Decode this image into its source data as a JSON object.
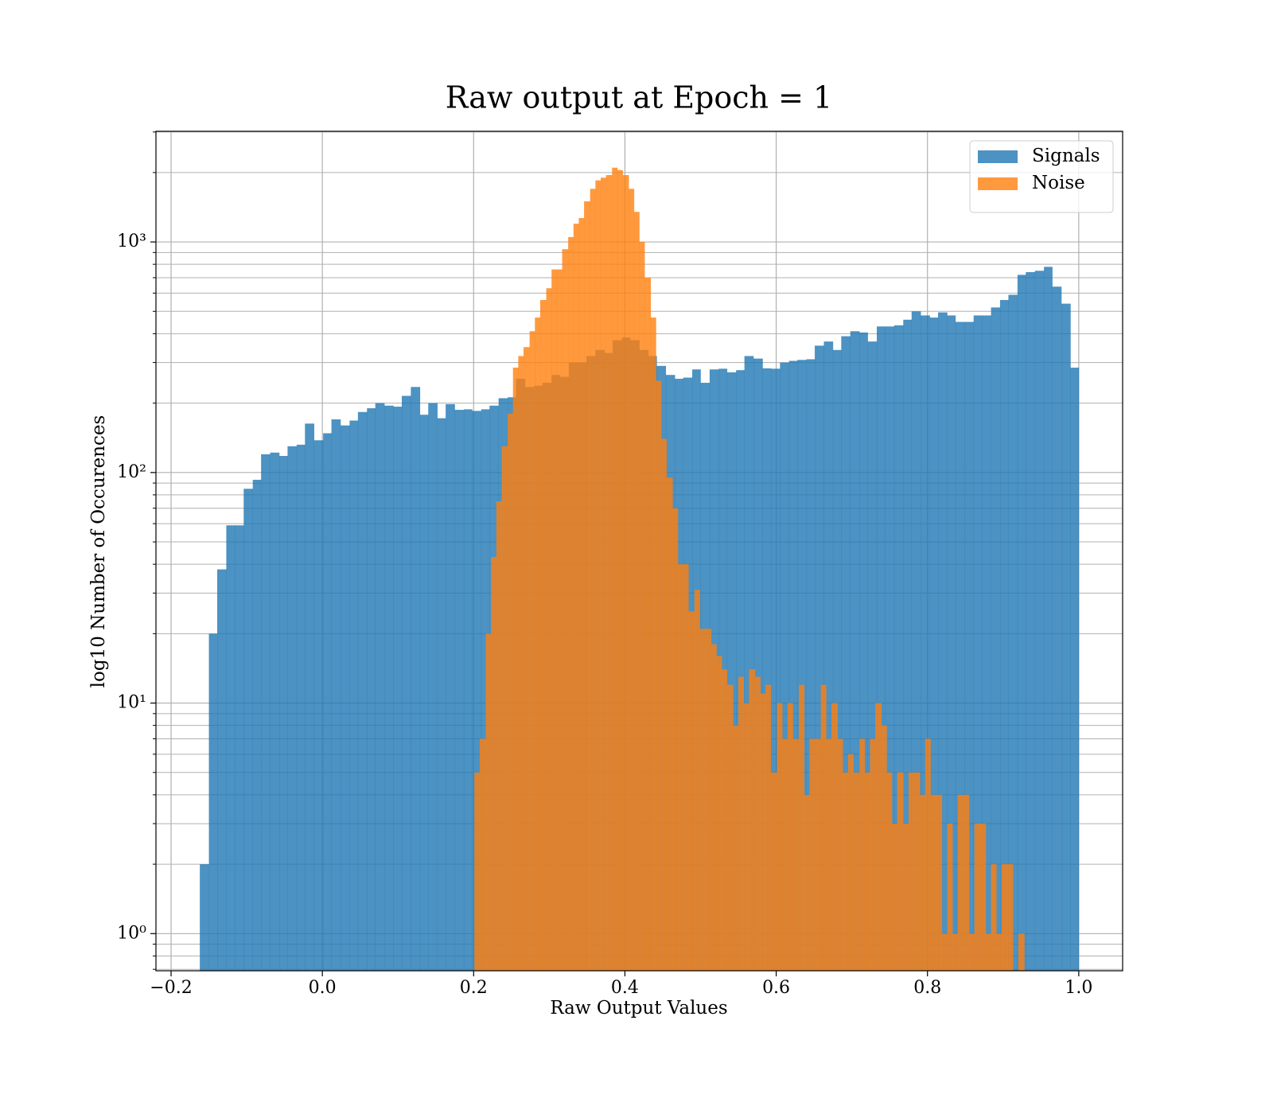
{
  "chart_data": {
    "type": "histogram",
    "title": "Raw output at Epoch = 1",
    "xlabel": "Raw Output Values",
    "ylabel": "log10 Number of Occurences",
    "log_y": true,
    "grid": true,
    "legend": "upper right",
    "alpha": 0.8,
    "xlim": [
      -0.22,
      1.058
    ],
    "ylim": [
      0.69,
      3020
    ],
    "xticks": [
      {
        "value": -0.2,
        "label": "−0.2"
      },
      {
        "value": 0,
        "label": "0.0"
      },
      0.2,
      0.4,
      0.6,
      0.8,
      {
        "value": 1,
        "label": "1.0"
      }
    ],
    "yticks": [
      {
        "value": 1,
        "label": "10⁰"
      },
      {
        "value": 10,
        "label": "10¹"
      },
      {
        "value": 100,
        "label": "10²"
      },
      {
        "value": 1000,
        "label": "10³"
      }
    ],
    "yticks_minor": [
      0.7,
      0.8,
      0.9,
      2,
      3,
      4,
      5,
      6,
      7,
      8,
      9,
      20,
      30,
      40,
      50,
      60,
      70,
      80,
      90,
      200,
      300,
      400,
      500,
      600,
      700,
      800,
      900,
      2000,
      3000
    ],
    "series": [
      {
        "name": "Signals",
        "color": "#1f77b4",
        "bins": [
          -0.162,
          -0.15,
          -0.139,
          -0.127,
          -0.116,
          -0.104,
          -0.092,
          -0.081,
          -0.069,
          -0.057,
          -0.046,
          -0.034,
          -0.023,
          -0.011,
          0.001,
          0.012,
          0.024,
          0.036,
          0.047,
          0.059,
          0.07,
          0.082,
          0.094,
          0.105,
          0.117,
          0.129,
          0.14,
          0.152,
          0.163,
          0.175,
          0.187,
          0.198,
          0.21,
          0.221,
          0.233,
          0.245,
          0.256,
          0.268,
          0.28,
          0.291,
          0.303,
          0.314,
          0.326,
          0.338,
          0.349,
          0.361,
          0.373,
          0.384,
          0.396,
          0.407,
          0.419,
          0.431,
          0.442,
          0.454,
          0.466,
          0.477,
          0.489,
          0.5,
          0.512,
          0.524,
          0.535,
          0.547,
          0.558,
          0.57,
          0.582,
          0.593,
          0.605,
          0.617,
          0.628,
          0.64,
          0.651,
          0.663,
          0.675,
          0.686,
          0.698,
          0.71,
          0.721,
          0.733,
          0.744,
          0.756,
          0.768,
          0.779,
          0.791,
          0.803,
          0.814,
          0.826,
          0.837,
          0.849,
          0.861,
          0.872,
          0.884,
          0.896,
          0.907,
          0.919,
          0.93,
          0.942,
          0.954,
          0.965,
          0.977,
          0.989,
          1.0
        ],
        "values": [
          2,
          20,
          38,
          59,
          59,
          85,
          93,
          120,
          122,
          118,
          130,
          132,
          163,
          138,
          148,
          170,
          160,
          168,
          183,
          190,
          200,
          195,
          193,
          215,
          235,
          178,
          200,
          172,
          198,
          187,
          188,
          185,
          188,
          195,
          210,
          212,
          255,
          235,
          238,
          245,
          265,
          260,
          300,
          300,
          320,
          340,
          330,
          375,
          385,
          375,
          340,
          320,
          290,
          265,
          255,
          258,
          280,
          245,
          280,
          282,
          272,
          278,
          320,
          312,
          283,
          282,
          300,
          305,
          308,
          310,
          355,
          370,
          340,
          390,
          410,
          405,
          370,
          430,
          430,
          435,
          460,
          500,
          480,
          470,
          495,
          480,
          450,
          450,
          480,
          480,
          520,
          560,
          590,
          720,
          740,
          750,
          780,
          640,
          540,
          285
        ]
      },
      {
        "name": "Noise",
        "color": "#ff7f0e",
        "bins": [
          0.201,
          0.208,
          0.216,
          0.223,
          0.23,
          0.237,
          0.245,
          0.252,
          0.259,
          0.266,
          0.274,
          0.281,
          0.288,
          0.296,
          0.303,
          0.31,
          0.317,
          0.325,
          0.332,
          0.339,
          0.346,
          0.354,
          0.361,
          0.368,
          0.375,
          0.383,
          0.39,
          0.397,
          0.405,
          0.412,
          0.419,
          0.426,
          0.434,
          0.441,
          0.448,
          0.455,
          0.463,
          0.47,
          0.477,
          0.484,
          0.492,
          0.499,
          0.506,
          0.514,
          0.521,
          0.528,
          0.535,
          0.543,
          0.55,
          0.557,
          0.564,
          0.572,
          0.579,
          0.586,
          0.593,
          0.601,
          0.608,
          0.615,
          0.622,
          0.63,
          0.637,
          0.644,
          0.652,
          0.659,
          0.666,
          0.673,
          0.681,
          0.688,
          0.695,
          0.702,
          0.71,
          0.717,
          0.724,
          0.731,
          0.739,
          0.746,
          0.753,
          0.76,
          0.768,
          0.775,
          0.782,
          0.79,
          0.797,
          0.804,
          0.811,
          0.819,
          0.826,
          0.833,
          0.84,
          0.848,
          0.855,
          0.862,
          0.869,
          0.877,
          0.884,
          0.891,
          0.898,
          0.906,
          0.913,
          0.92,
          0.928
        ],
        "values": [
          5,
          7,
          20,
          43,
          75,
          130,
          180,
          285,
          320,
          350,
          410,
          470,
          560,
          630,
          760,
          760,
          930,
          1050,
          1200,
          1270,
          1500,
          1700,
          1850,
          1900,
          1950,
          2100,
          2050,
          1950,
          1700,
          1350,
          1000,
          700,
          470,
          250,
          140,
          95,
          70,
          40,
          40,
          25,
          31,
          21,
          21,
          18,
          16,
          14,
          12,
          8,
          13,
          10,
          14,
          13,
          11,
          12,
          5,
          10,
          7,
          10,
          7,
          12,
          4,
          7,
          7,
          12,
          7,
          10,
          7,
          5,
          6,
          5,
          7,
          5,
          7,
          10,
          8,
          5,
          3,
          5,
          3,
          5,
          5,
          4,
          7,
          4,
          4,
          1,
          3,
          1,
          4,
          4,
          1,
          3,
          3,
          1,
          2,
          1,
          2,
          2,
          0,
          1
        ]
      }
    ]
  }
}
